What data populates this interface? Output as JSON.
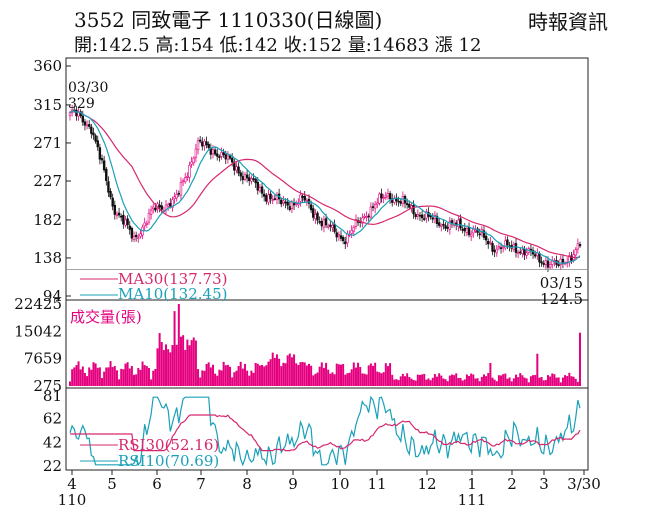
{
  "header": {
    "title": "3552  同致電子 1110330(日線圖)",
    "source": "時報資訊",
    "ohlc": "開:142.5 高:154 低:142 收:152 量:14683 漲 12"
  },
  "chart_data": [
    {
      "type": "candlestick",
      "name": "price",
      "y_ticks": [
        "360",
        "315",
        "271",
        "227",
        "182",
        "138",
        "94"
      ],
      "ylim": [
        94,
        360
      ],
      "annotations": {
        "high_date": "03/30",
        "high_value": "329",
        "low_date": "03/15",
        "low_value": "124.5"
      },
      "legend": [
        "MA30(137.73)",
        "MA10(132.45)"
      ],
      "series_colors": {
        "up": "#e4007f",
        "down": "#111111",
        "ma30": "#d6286e",
        "ma10": "#1aa0b8"
      },
      "key_closes": [
        {
          "x": "04/01",
          "close": 308
        },
        {
          "x": "04/15",
          "close": 290
        },
        {
          "x": "05/01",
          "close": 200
        },
        {
          "x": "05/10",
          "close": 160
        },
        {
          "x": "05/25",
          "close": 195
        },
        {
          "x": "06/10",
          "close": 205
        },
        {
          "x": "06/25",
          "close": 270
        },
        {
          "x": "07/05",
          "close": 260
        },
        {
          "x": "07/20",
          "close": 238
        },
        {
          "x": "08/05",
          "close": 215
        },
        {
          "x": "08/20",
          "close": 200
        },
        {
          "x": "09/05",
          "close": 205
        },
        {
          "x": "09/20",
          "close": 175
        },
        {
          "x": "10/10",
          "close": 160
        },
        {
          "x": "10/25",
          "close": 192
        },
        {
          "x": "11/08",
          "close": 212
        },
        {
          "x": "11/25",
          "close": 195
        },
        {
          "x": "12/10",
          "close": 182
        },
        {
          "x": "12/25",
          "close": 175
        },
        {
          "x": "01/10",
          "close": 170
        },
        {
          "x": "01/25",
          "close": 150
        },
        {
          "x": "02/10",
          "close": 150
        },
        {
          "x": "02/25",
          "close": 138
        },
        {
          "x": "03/15",
          "close": 128
        },
        {
          "x": "03/30",
          "close": 152
        }
      ]
    },
    {
      "type": "bar",
      "name": "volume",
      "title": "成交量(張)",
      "y_ticks": [
        "22425",
        "15042",
        "7659",
        "275"
      ],
      "ylim": [
        275,
        22425
      ],
      "color": "#e4007f"
    },
    {
      "type": "line",
      "name": "rsi",
      "y_ticks": [
        "81",
        "62",
        "42",
        "22"
      ],
      "ylim": [
        22,
        81
      ],
      "legend": [
        "RSI30(52.16)",
        "RSI10(70.69)"
      ],
      "series_colors": {
        "rsi30": "#d6286e",
        "rsi10": "#1aa0b8"
      }
    }
  ],
  "x_axis": {
    "ticks": [
      "4",
      "5",
      "6",
      "7",
      "8",
      "9",
      "10",
      "11",
      "12",
      "1",
      "2",
      "3",
      "3/30"
    ],
    "year_labels": [
      "110",
      "111"
    ]
  }
}
